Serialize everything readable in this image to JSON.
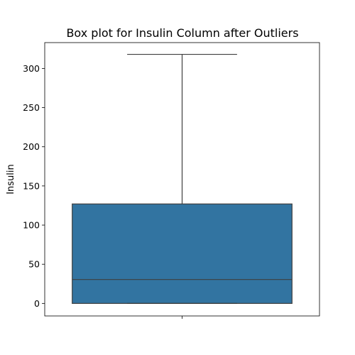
{
  "chart_data": {
    "type": "box",
    "title": "Box plot for Insulin Column after Outliers",
    "xlabel": "",
    "ylabel": "Insulin",
    "ylim": [
      -16,
      333
    ],
    "yticks": [
      0,
      50,
      100,
      150,
      200,
      250,
      300
    ],
    "grid": false,
    "series": [
      {
        "color": "#3274a1",
        "whisker_low": 0,
        "q1": 0,
        "median": 30.5,
        "q3": 127,
        "whisker_high": 318
      }
    ]
  }
}
